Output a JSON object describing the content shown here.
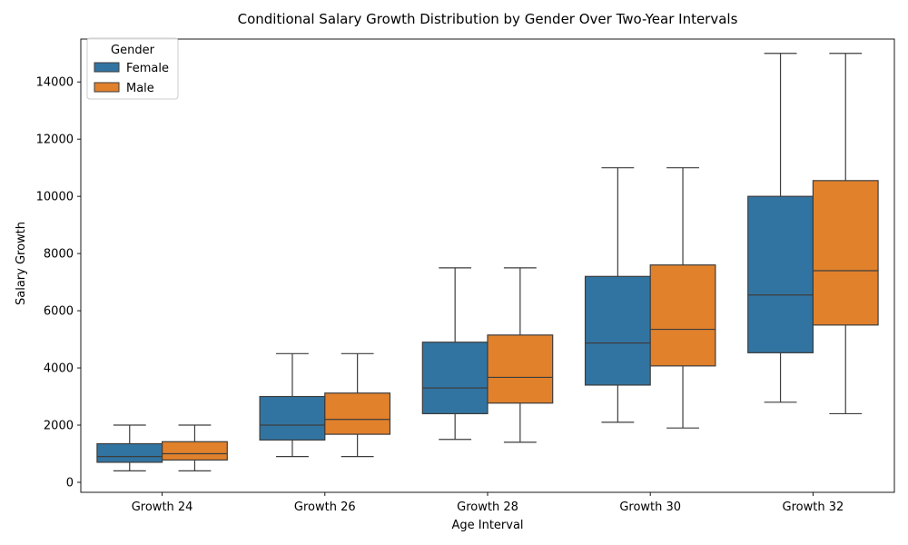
{
  "chart_data": {
    "type": "box",
    "title": "Conditional Salary Growth Distribution by Gender Over Two-Year Intervals",
    "xlabel": "Age Interval",
    "ylabel": "Salary Growth",
    "ylim": [
      -350,
      15500
    ],
    "yticks": [
      0,
      2000,
      4000,
      6000,
      8000,
      10000,
      12000,
      14000
    ],
    "categories": [
      "Growth 24",
      "Growth 26",
      "Growth 28",
      "Growth 30",
      "Growth 32"
    ],
    "legend": {
      "title": "Gender",
      "position": "top-left"
    },
    "grid": false,
    "series": [
      {
        "name": "Female",
        "color": "#3274a1",
        "boxes": [
          {
            "whisker_low": 400,
            "q1": 700,
            "median": 900,
            "q3": 1350,
            "whisker_high": 2000
          },
          {
            "whisker_low": 900,
            "q1": 1480,
            "median": 2000,
            "q3": 3000,
            "whisker_high": 4500
          },
          {
            "whisker_low": 1500,
            "q1": 2400,
            "median": 3300,
            "q3": 4900,
            "whisker_high": 7500
          },
          {
            "whisker_low": 2100,
            "q1": 3400,
            "median": 4870,
            "q3": 7200,
            "whisker_high": 11000
          },
          {
            "whisker_low": 2800,
            "q1": 4530,
            "median": 6550,
            "q3": 10000,
            "whisker_high": 15000
          }
        ]
      },
      {
        "name": "Male",
        "color": "#e1812c",
        "boxes": [
          {
            "whisker_low": 400,
            "q1": 780,
            "median": 1000,
            "q3": 1420,
            "whisker_high": 2000
          },
          {
            "whisker_low": 900,
            "q1": 1680,
            "median": 2200,
            "q3": 3120,
            "whisker_high": 4500
          },
          {
            "whisker_low": 1400,
            "q1": 2770,
            "median": 3670,
            "q3": 5150,
            "whisker_high": 7500
          },
          {
            "whisker_low": 1900,
            "q1": 4070,
            "median": 5350,
            "q3": 7600,
            "whisker_high": 11000
          },
          {
            "whisker_low": 2400,
            "q1": 5500,
            "median": 7400,
            "q3": 10550,
            "whisker_high": 15000
          }
        ]
      }
    ]
  }
}
